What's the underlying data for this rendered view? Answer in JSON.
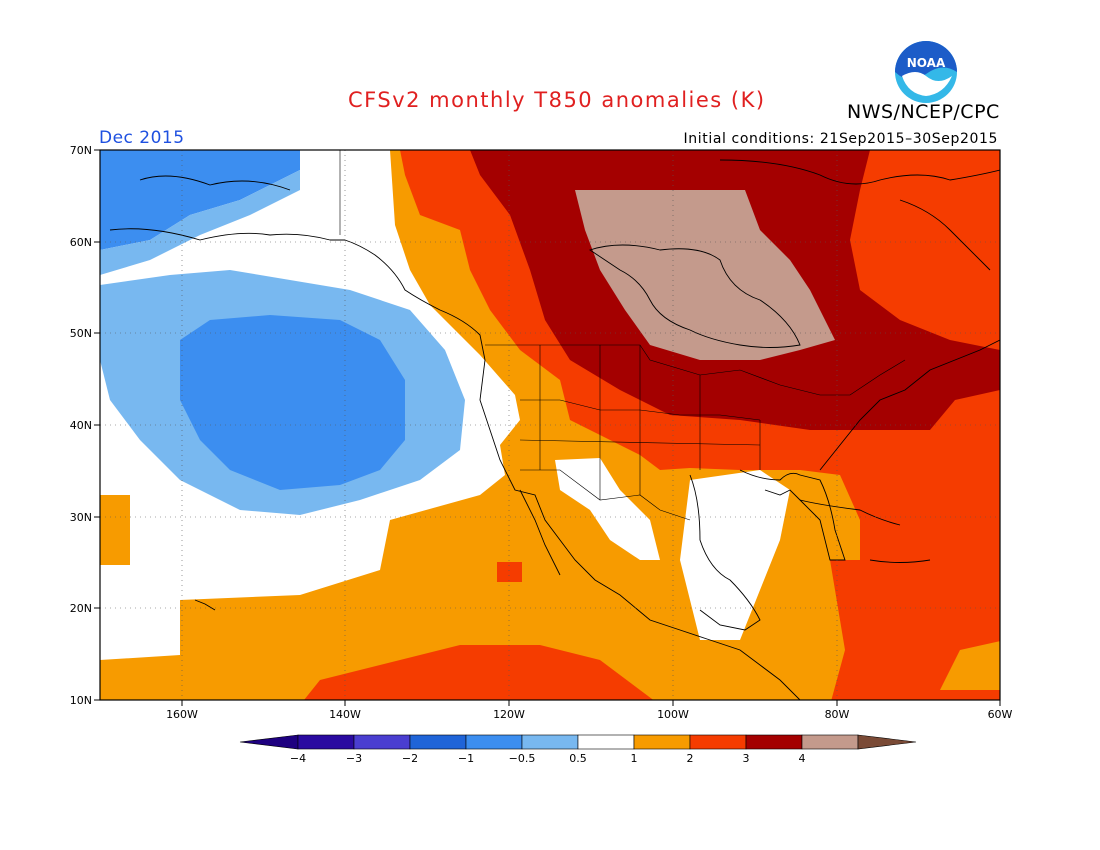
{
  "title": "CFSv2 monthly T850 anomalies (K)",
  "agency": "NWS/NCEP/CPC",
  "logo_text": "NOAA",
  "month_label": "Dec 2015",
  "init_label": "Initial conditions: 21Sep2015–30Sep2015",
  "lat_ticks": [
    "70N",
    "60N",
    "50N",
    "40N",
    "30N",
    "20N",
    "10N"
  ],
  "lon_ticks": [
    "160W",
    "140W",
    "120W",
    "100W",
    "80W",
    "60W"
  ],
  "colorbar": {
    "labels": [
      "−4",
      "−3",
      "−2",
      "−1",
      "−0.5",
      "0.5",
      "1",
      "2",
      "3",
      "4"
    ],
    "colors": [
      "#2a0aa0",
      "#4a3ed0",
      "#1f64d8",
      "#3c8ef0",
      "#78b8f0",
      "#ffffff",
      "#f79b00",
      "#f53c00",
      "#a40000",
      "#c49a8c"
    ],
    "low_end_color": "#1e0080",
    "high_end_color": "#7a4a36"
  },
  "colors": {
    "title": "#e02020",
    "month": "#1e50e0",
    "logo_blue": "#1c5cc8",
    "logo_cyan": "#34b8e8"
  }
}
